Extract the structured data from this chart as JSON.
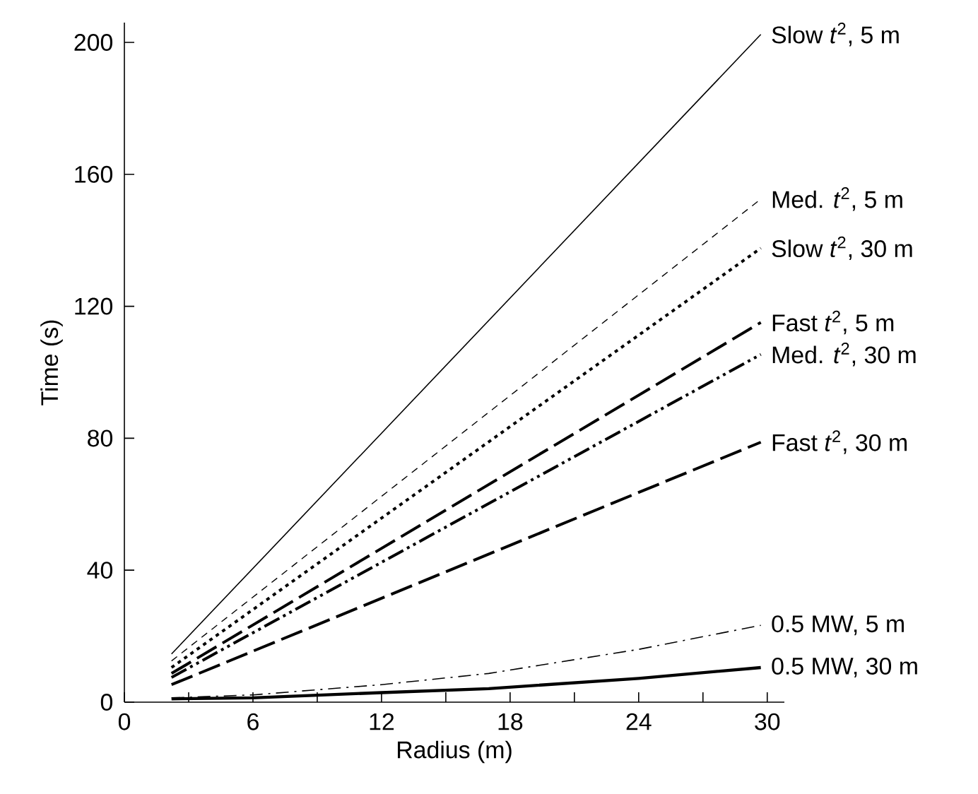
{
  "chart_data": {
    "type": "line",
    "xlabel": "Radius (m)",
    "ylabel": "Time (s)",
    "xlim": [
      0,
      30.8
    ],
    "ylim": [
      0,
      206
    ],
    "xticks": [
      0,
      {
        "value": 3,
        "label": null
      },
      6,
      {
        "value": 9,
        "label": null
      },
      12,
      {
        "value": 15,
        "label": null
      },
      18,
      {
        "value": 21,
        "label": null
      },
      24,
      {
        "value": 27,
        "label": null
      },
      30
    ],
    "yticks": [
      0,
      40,
      80,
      120,
      160,
      200
    ],
    "grid": false,
    "marker": "none",
    "series": [
      {
        "name": "Slow *t*$^{2}$, 5 m",
        "color": "#000000",
        "line_style": "solid",
        "x": [
          2.2,
          29.7
        ],
        "values": [
          14.6,
          202.4
        ]
      },
      {
        "name": "Med. *t*$^{2}$, 5 m",
        "color": "#000000",
        "line_style": "dashed",
        "x": [
          2.2,
          29.7
        ],
        "values": [
          12.5,
          152.5
        ]
      },
      {
        "name": "Slow *t*$^{2}$, 30 m",
        "color": "#000000",
        "line_style": "dotted",
        "x": [
          2.2,
          29.7
        ],
        "values": [
          10.5,
          137.6
        ]
      },
      {
        "name": "Fast *t*$^{2}$, 5 m",
        "color": "#000000",
        "line_style": "longdash",
        "x": [
          2.2,
          29.7
        ],
        "values": [
          8.7,
          115.1
        ]
      },
      {
        "name": "Med. *t*$^{2}$, 30 m",
        "color": "#000000",
        "line_style": "dashdotdot",
        "x": [
          2.2,
          29.7
        ],
        "values": [
          7.5,
          105.4
        ]
      },
      {
        "name": "Fast *t*$^{2}$, 30 m",
        "color": "#000000",
        "line_style": "longdash",
        "x": [
          2.2,
          29.7
        ],
        "values": [
          5.3,
          78.8
        ]
      },
      {
        "name": "0.5 MW, 5 m",
        "color": "#000000",
        "line_style": "dashdot",
        "x": [
          2.2,
          6,
          12,
          17,
          24,
          29.7
        ],
        "values": [
          1.3,
          2.2,
          5.3,
          8.7,
          16,
          23.3
        ]
      },
      {
        "name": "0.5 MW, 30 m",
        "color": "#000000",
        "line_style": "solid",
        "x": [
          2.2,
          6,
          12,
          17,
          24,
          29.7
        ],
        "values": [
          1,
          1.3,
          2.9,
          4.1,
          7.2,
          10.5
        ]
      }
    ]
  }
}
